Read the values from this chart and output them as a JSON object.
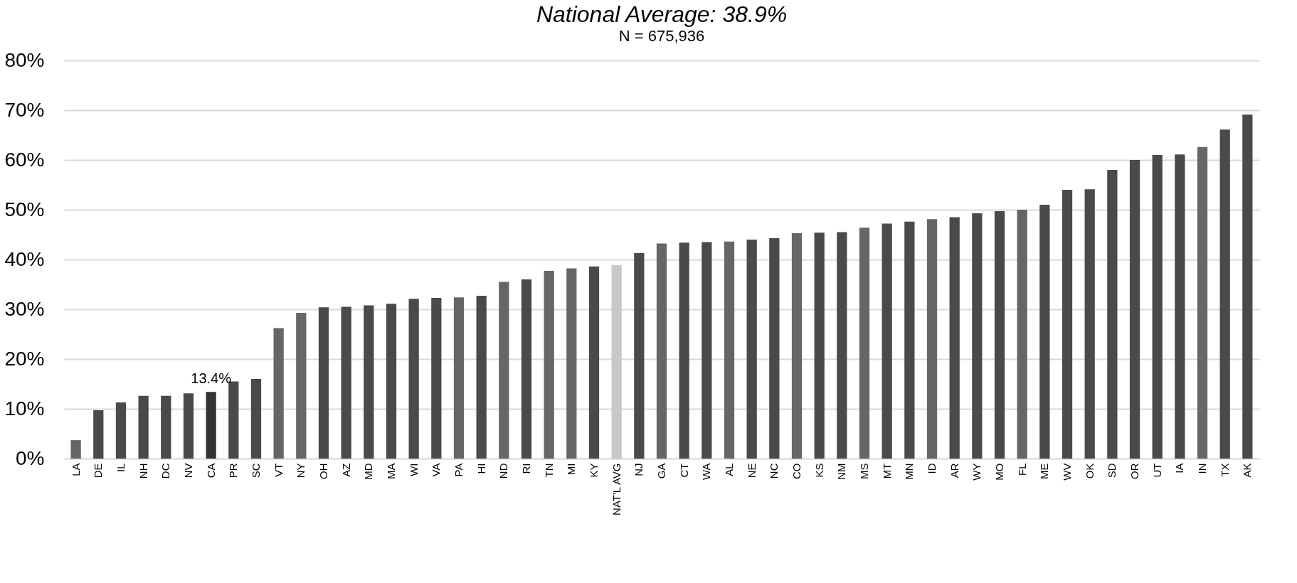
{
  "chart_data": {
    "type": "bar",
    "subtitle": "National Average: 38.9%",
    "annotations": [
      "N = 675,936",
      {
        "text": "13.4%",
        "x": "CA",
        "y": 13.4
      }
    ],
    "categories": [
      "LA",
      "DE",
      "IL",
      "NH",
      "DC",
      "NV",
      "CA",
      "PR",
      "SC",
      "VT",
      "NY",
      "OH",
      "AZ",
      "MD",
      "MA",
      "WI",
      "VA",
      "PA",
      "HI",
      "ND",
      "RI",
      "TN",
      "MI",
      "KY",
      "NAT'L AVG",
      "NJ",
      "GA",
      "CT",
      "WA",
      "AL",
      "NE",
      "NC",
      "CO",
      "KS",
      "NM",
      "MS",
      "MT",
      "MN",
      "ID",
      "AR",
      "WY",
      "MO",
      "FL",
      "ME",
      "WV",
      "OK",
      "SD",
      "OR",
      "UT",
      "IA",
      "IN",
      "TX",
      "AK"
    ],
    "values": [
      3.7,
      9.7,
      11.3,
      12.6,
      12.6,
      13.1,
      13.4,
      15.5,
      16.0,
      26.2,
      29.3,
      30.4,
      30.5,
      30.8,
      31.1,
      32.1,
      32.3,
      32.4,
      32.7,
      35.5,
      36.0,
      37.7,
      38.2,
      38.6,
      38.9,
      41.3,
      43.2,
      43.4,
      43.5,
      43.6,
      44.0,
      44.3,
      45.3,
      45.4,
      45.5,
      46.4,
      47.2,
      47.6,
      48.1,
      48.5,
      49.3,
      49.7,
      50.0,
      51.0,
      54.0,
      54.1,
      58.0,
      60.0,
      61.0,
      61.1,
      62.6,
      66.1,
      69.1
    ],
    "colors": [
      "#666666",
      "#4a4a4a",
      "#4a4a4a",
      "#4a4a4a",
      "#4a4a4a",
      "#4a4a4a",
      "#333333",
      "#4a4a4a",
      "#4a4a4a",
      "#666666",
      "#666666",
      "#4a4a4a",
      "#4a4a4a",
      "#4a4a4a",
      "#4a4a4a",
      "#4a4a4a",
      "#4a4a4a",
      "#666666",
      "#4a4a4a",
      "#666666",
      "#4a4a4a",
      "#666666",
      "#666666",
      "#4a4a4a",
      "#c8c8c8",
      "#4a4a4a",
      "#666666",
      "#4a4a4a",
      "#4a4a4a",
      "#666666",
      "#4a4a4a",
      "#4a4a4a",
      "#666666",
      "#4a4a4a",
      "#4a4a4a",
      "#666666",
      "#4a4a4a",
      "#4a4a4a",
      "#666666",
      "#4a4a4a",
      "#4a4a4a",
      "#4a4a4a",
      "#666666",
      "#4a4a4a",
      "#4a4a4a",
      "#4a4a4a",
      "#4a4a4a",
      "#4a4a4a",
      "#4a4a4a",
      "#4a4a4a",
      "#666666",
      "#4a4a4a",
      "#4a4a4a"
    ],
    "ylim": [
      0,
      80
    ],
    "yticks": [
      {
        "value": 0,
        "label": "0%"
      },
      {
        "value": 10,
        "label": "10%"
      },
      {
        "value": 20,
        "label": "20%"
      },
      {
        "value": 30,
        "label": "30%"
      },
      {
        "value": 40,
        "label": "40%"
      },
      {
        "value": 50,
        "label": "50%"
      },
      {
        "value": 60,
        "label": "60%"
      },
      {
        "value": 70,
        "label": "70%"
      },
      {
        "value": 80,
        "label": "80%"
      }
    ],
    "grid": "y"
  }
}
